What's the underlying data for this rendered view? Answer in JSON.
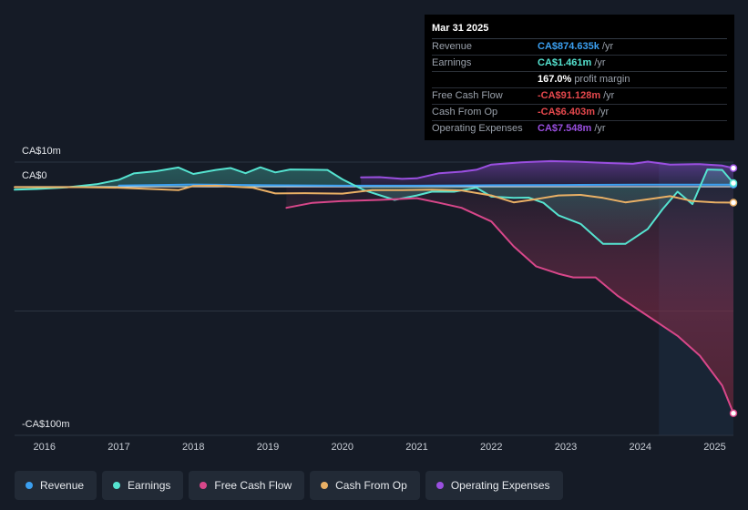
{
  "chart_data": {
    "type": "line",
    "title": "",
    "y_axis": {
      "top_label": "CA$10m",
      "zero_label": "CA$0",
      "bottom_label": "-CA$100m",
      "ylim": [
        -100,
        10
      ]
    },
    "x_ticks": [
      "2016",
      "2017",
      "2018",
      "2019",
      "2020",
      "2021",
      "2022",
      "2023",
      "2024",
      "2025"
    ],
    "xlim": [
      2015.6,
      2025.25
    ],
    "forecast_start": 2024.25,
    "series": [
      {
        "name": "Revenue",
        "color": "#3b9ff0",
        "points": [
          [
            2017.0,
            0.5
          ],
          [
            2018.0,
            0.9
          ],
          [
            2019.0,
            0.6
          ],
          [
            2020.0,
            0.4
          ],
          [
            2021.0,
            0.4
          ],
          [
            2022.0,
            0.6
          ],
          [
            2023.0,
            0.7
          ],
          [
            2024.0,
            0.8
          ],
          [
            2025.0,
            0.87
          ],
          [
            2025.25,
            0.87
          ]
        ]
      },
      {
        "name": "Earnings",
        "color": "#55e3d0",
        "points": [
          [
            2015.6,
            -1.2
          ],
          [
            2015.9,
            -0.9
          ],
          [
            2016.3,
            -0.3
          ],
          [
            2016.7,
            1.0
          ],
          [
            2017.0,
            2.8
          ],
          [
            2017.2,
            5.4
          ],
          [
            2017.5,
            6.3
          ],
          [
            2017.8,
            7.8
          ],
          [
            2018.0,
            5.2
          ],
          [
            2018.3,
            6.8
          ],
          [
            2018.5,
            7.6
          ],
          [
            2018.7,
            5.5
          ],
          [
            2018.9,
            7.9
          ],
          [
            2019.1,
            5.8
          ],
          [
            2019.3,
            7.0
          ],
          [
            2019.6,
            6.9
          ],
          [
            2019.8,
            6.8
          ],
          [
            2020.0,
            3.0
          ],
          [
            2020.3,
            -1.5
          ],
          [
            2020.7,
            -5.3
          ],
          [
            2021.0,
            -3.5
          ],
          [
            2021.2,
            -2.0
          ],
          [
            2021.5,
            -2.0
          ],
          [
            2021.8,
            -0.4
          ],
          [
            2022.0,
            -4.0
          ],
          [
            2022.3,
            -4.5
          ],
          [
            2022.5,
            -4.4
          ],
          [
            2022.7,
            -6.5
          ],
          [
            2022.9,
            -11.5
          ],
          [
            2023.2,
            -15.0
          ],
          [
            2023.5,
            -23.0
          ],
          [
            2023.8,
            -23.0
          ],
          [
            2024.1,
            -17.0
          ],
          [
            2024.3,
            -9.0
          ],
          [
            2024.5,
            -2.0
          ],
          [
            2024.7,
            -7.0
          ],
          [
            2024.9,
            7.0
          ],
          [
            2025.1,
            6.8
          ],
          [
            2025.25,
            1.46
          ]
        ]
      },
      {
        "name": "Free Cash Flow",
        "color": "#d8478a",
        "points": [
          [
            2019.25,
            -8.5
          ],
          [
            2019.6,
            -6.5
          ],
          [
            2020.0,
            -5.8
          ],
          [
            2020.5,
            -5.3
          ],
          [
            2021.0,
            -4.6
          ],
          [
            2021.3,
            -6.5
          ],
          [
            2021.6,
            -8.5
          ],
          [
            2022.0,
            -14.0
          ],
          [
            2022.3,
            -24.0
          ],
          [
            2022.6,
            -32.0
          ],
          [
            2022.9,
            -35.0
          ],
          [
            2023.1,
            -36.5
          ],
          [
            2023.4,
            -36.5
          ],
          [
            2023.7,
            -44.0
          ],
          [
            2024.0,
            -50.0
          ],
          [
            2024.25,
            -55.0
          ],
          [
            2024.5,
            -60.0
          ],
          [
            2024.8,
            -68.0
          ],
          [
            2025.1,
            -80.0
          ],
          [
            2025.25,
            -91.128
          ]
        ]
      },
      {
        "name": "Cash From Op",
        "color": "#eab065",
        "points": [
          [
            2015.6,
            -0.2
          ],
          [
            2016.5,
            -0.2
          ],
          [
            2017.0,
            -0.4
          ],
          [
            2017.5,
            -1.0
          ],
          [
            2017.8,
            -1.4
          ],
          [
            2018.0,
            0.3
          ],
          [
            2018.3,
            0.4
          ],
          [
            2018.8,
            -0.4
          ],
          [
            2019.1,
            -2.7
          ],
          [
            2019.5,
            -2.6
          ],
          [
            2020.0,
            -2.8
          ],
          [
            2020.4,
            -1.4
          ],
          [
            2020.8,
            -1.4
          ],
          [
            2021.2,
            -1.2
          ],
          [
            2021.6,
            -1.5
          ],
          [
            2022.0,
            -3.5
          ],
          [
            2022.3,
            -6.3
          ],
          [
            2022.6,
            -5.0
          ],
          [
            2022.9,
            -3.5
          ],
          [
            2023.2,
            -3.3
          ],
          [
            2023.5,
            -4.5
          ],
          [
            2023.8,
            -6.3
          ],
          [
            2024.1,
            -5.1
          ],
          [
            2024.4,
            -3.8
          ],
          [
            2024.7,
            -5.8
          ],
          [
            2025.0,
            -6.3
          ],
          [
            2025.25,
            -6.403
          ]
        ]
      },
      {
        "name": "Operating Expenses",
        "color": "#9a4fe0",
        "points": [
          [
            2020.25,
            3.8
          ],
          [
            2020.5,
            3.9
          ],
          [
            2020.8,
            3.2
          ],
          [
            2021.0,
            3.4
          ],
          [
            2021.3,
            5.5
          ],
          [
            2021.6,
            6.1
          ],
          [
            2021.8,
            6.9
          ],
          [
            2022.0,
            9.0
          ],
          [
            2022.4,
            9.9
          ],
          [
            2022.8,
            10.4
          ],
          [
            2023.2,
            10.1
          ],
          [
            2023.6,
            9.6
          ],
          [
            2023.9,
            9.3
          ],
          [
            2024.1,
            10.2
          ],
          [
            2024.4,
            9.0
          ],
          [
            2024.8,
            9.2
          ],
          [
            2025.1,
            8.6
          ],
          [
            2025.25,
            7.548
          ]
        ]
      }
    ],
    "legend": [
      {
        "name": "Revenue",
        "color": "#3b9ff0"
      },
      {
        "name": "Earnings",
        "color": "#55e3d0"
      },
      {
        "name": "Free Cash Flow",
        "color": "#d8478a"
      },
      {
        "name": "Cash From Op",
        "color": "#eab065"
      },
      {
        "name": "Operating Expenses",
        "color": "#9a4fe0"
      }
    ],
    "tooltip": {
      "date": "Mar 31 2025",
      "rows": [
        {
          "label": "Revenue",
          "value": "CA$874.635k",
          "unit": "/yr",
          "color": "#3b9ff0"
        },
        {
          "label": "Earnings",
          "value": "CA$1.461m",
          "unit": "/yr",
          "color": "#55e3d0"
        },
        {
          "label": "",
          "value": "167.0%",
          "unit": "profit margin",
          "color": "#ffffff"
        },
        {
          "label": "Free Cash Flow",
          "value": "-CA$91.128m",
          "unit": "/yr",
          "color": "#e5484d"
        },
        {
          "label": "Cash From Op",
          "value": "-CA$6.403m",
          "unit": "/yr",
          "color": "#e5484d"
        },
        {
          "label": "Operating Expenses",
          "value": "CA$7.548m",
          "unit": "/yr",
          "color": "#9a4fe0"
        }
      ]
    }
  }
}
